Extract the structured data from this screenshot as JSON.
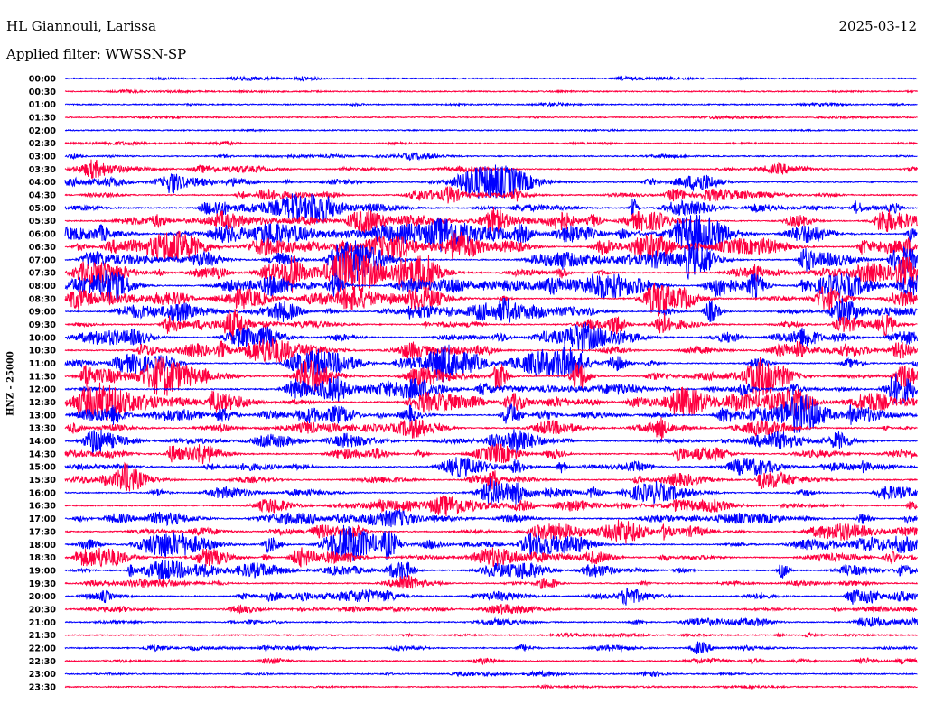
{
  "header": {
    "station": "HL Giannouli, Larissa",
    "date": "2025-03-12",
    "filter": "Applied filter: WWSSN-SP"
  },
  "chart_data": {
    "type": "line",
    "title": "HL Giannouli, Larissa",
    "ylabel": "HNZ - 25000",
    "colors": {
      "even": "#0000ff",
      "odd": "#ff0040"
    },
    "row_labels": [
      "00:00",
      "00:30",
      "01:00",
      "01:30",
      "02:00",
      "02:30",
      "03:00",
      "03:30",
      "04:00",
      "04:30",
      "05:00",
      "05:30",
      "06:00",
      "06:30",
      "07:00",
      "07:30",
      "08:00",
      "08:30",
      "09:00",
      "09:30",
      "10:00",
      "10:30",
      "11:00",
      "11:30",
      "12:00",
      "12:30",
      "13:00",
      "13:30",
      "14:00",
      "14:30",
      "15:00",
      "15:30",
      "16:00",
      "16:30",
      "17:00",
      "17:30",
      "18:00",
      "18:30",
      "19:00",
      "19:30",
      "20:00",
      "20:30",
      "21:00",
      "21:30",
      "22:00",
      "22:30",
      "23:00",
      "23:30"
    ],
    "activity": [
      0.1,
      0.1,
      0.1,
      0.1,
      0.05,
      0.15,
      0.2,
      0.3,
      0.45,
      0.4,
      0.5,
      0.6,
      0.8,
      0.7,
      0.7,
      0.8,
      0.7,
      0.6,
      0.6,
      0.6,
      0.5,
      0.6,
      0.6,
      0.6,
      0.6,
      0.7,
      0.6,
      0.5,
      0.5,
      0.4,
      0.5,
      0.4,
      0.5,
      0.5,
      0.5,
      0.5,
      0.6,
      0.5,
      0.5,
      0.4,
      0.5,
      0.3,
      0.3,
      0.2,
      0.3,
      0.2,
      0.15,
      0.1
    ]
  }
}
